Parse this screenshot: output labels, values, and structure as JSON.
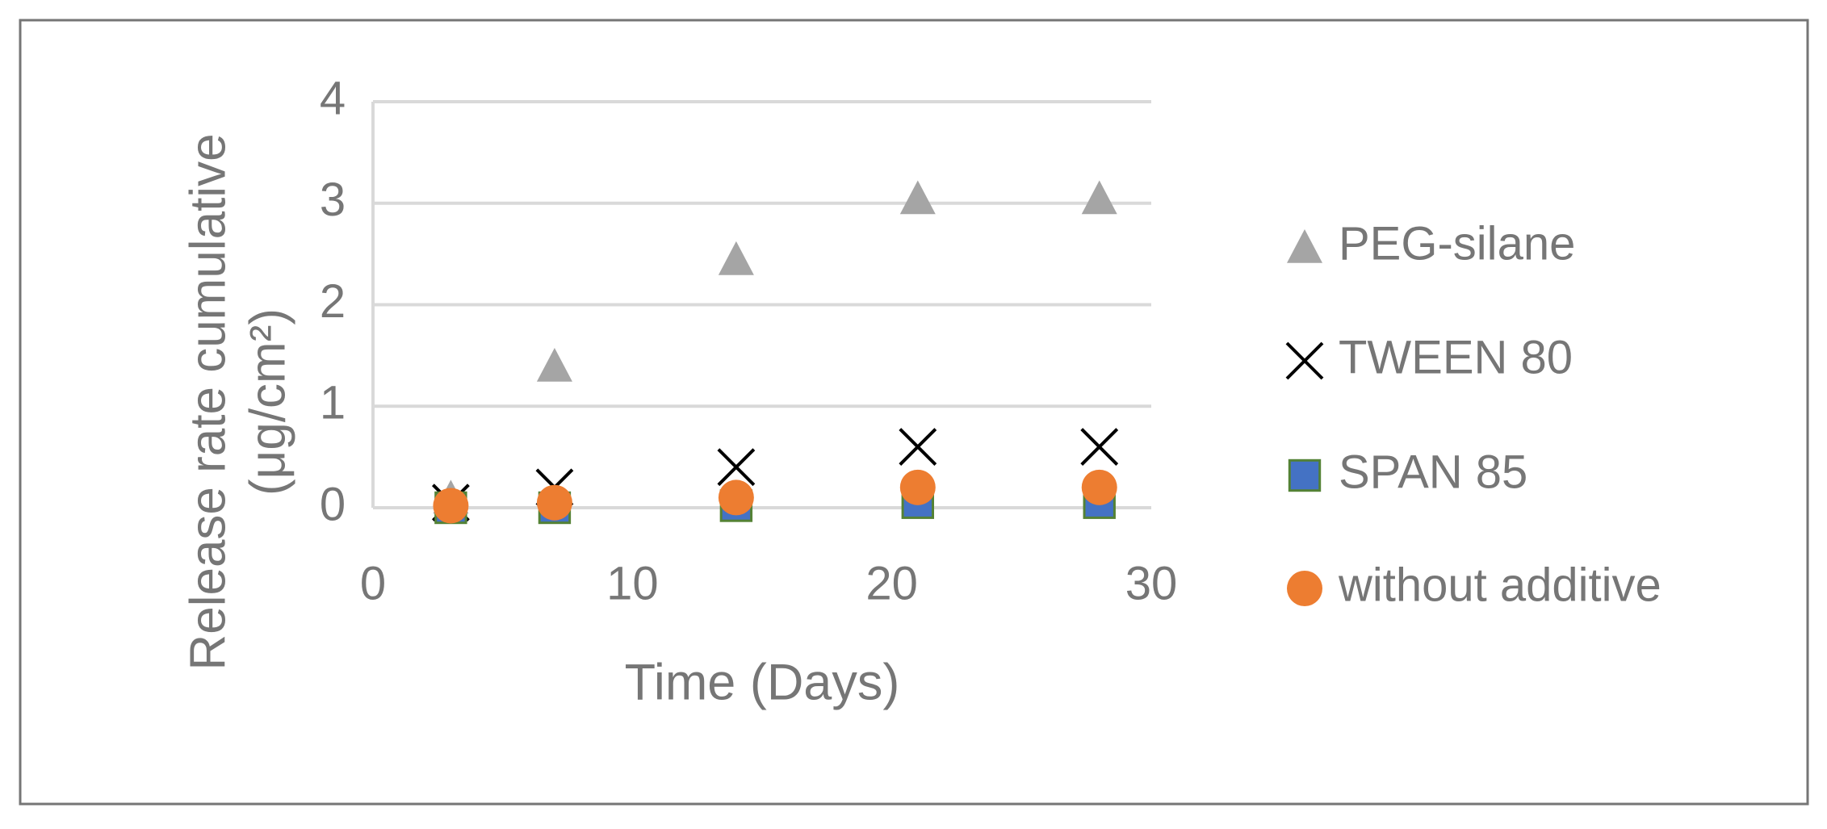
{
  "chart_data": {
    "type": "scatter",
    "x_label": "Time (Days)",
    "y_label": "Release rate cumulative (μg/cm²)",
    "xlim": [
      0,
      30
    ],
    "xticks": [
      0,
      10,
      20,
      30
    ],
    "ylim": [
      0,
      4
    ],
    "yticks": [
      0,
      1,
      2,
      3,
      4
    ],
    "grid": true,
    "legend": "right",
    "series": [
      {
        "name": "PEG-silane",
        "color": "#a5a5a5",
        "marker": "triangle",
        "x": [
          3,
          7,
          14,
          21,
          28
        ],
        "values": [
          0.1,
          1.4,
          2.45,
          3.05,
          3.05
        ]
      },
      {
        "name": "TWEEN 80",
        "color": "#000000",
        "marker": "x",
        "x": [
          3,
          7,
          14,
          21,
          28
        ],
        "values": [
          0.05,
          0.2,
          0.4,
          0.6,
          0.6
        ]
      },
      {
        "name": "SPAN 85",
        "color": "#4472c4",
        "marker": "square",
        "x": [
          3,
          7,
          14,
          21,
          28
        ],
        "values": [
          0,
          0,
          0.02,
          0.05,
          0.05
        ]
      },
      {
        "name": "without additive",
        "color": "#ed7d31",
        "marker": "circle",
        "x": [
          3,
          7,
          14,
          21,
          28
        ],
        "values": [
          0.02,
          0.05,
          0.1,
          0.2,
          0.2
        ]
      }
    ]
  }
}
